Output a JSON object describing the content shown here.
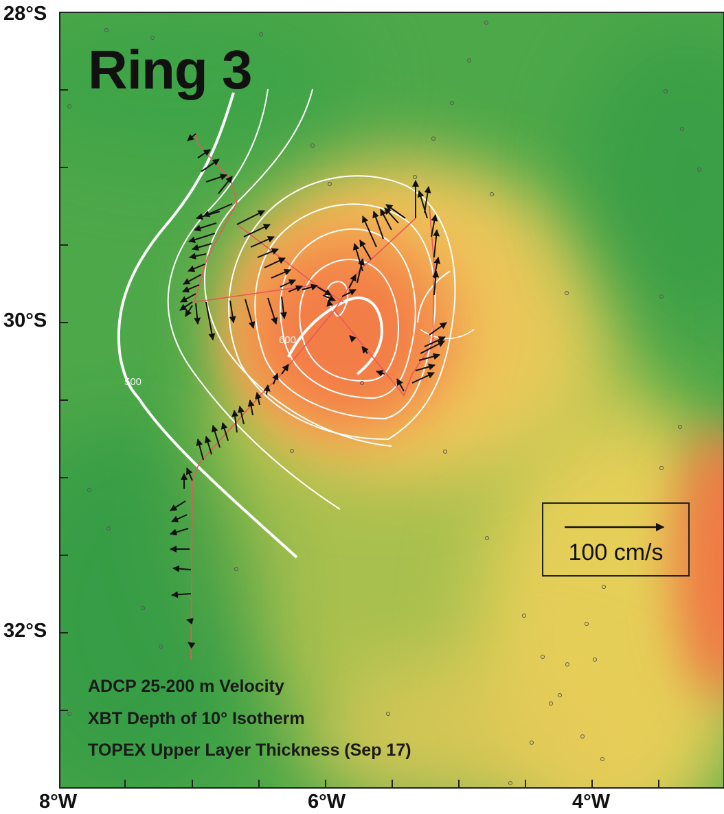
{
  "title": "Ring 3",
  "y_axis_labels": [
    "28°S",
    "30°S",
    "32°S"
  ],
  "x_axis_labels": [
    "8°W",
    "6°W",
    "4°W"
  ],
  "caption": {
    "line1": "ADCP 25-200 m Velocity",
    "line2": "XBT Depth of 10° Isotherm",
    "line3": "TOPEX Upper Layer Thickness (Sep 17)"
  },
  "contour_labels": [
    "500",
    "600"
  ],
  "scale_legend": {
    "label": "100 cm/s"
  },
  "colors": {
    "background_green": "#3fa24a",
    "warm_core_orange": "#f37d47",
    "transition_yellow": "#f1d25c",
    "contour_white": "#ffffff",
    "ship_track": "#e8575a",
    "vector_black": "#111111"
  }
}
